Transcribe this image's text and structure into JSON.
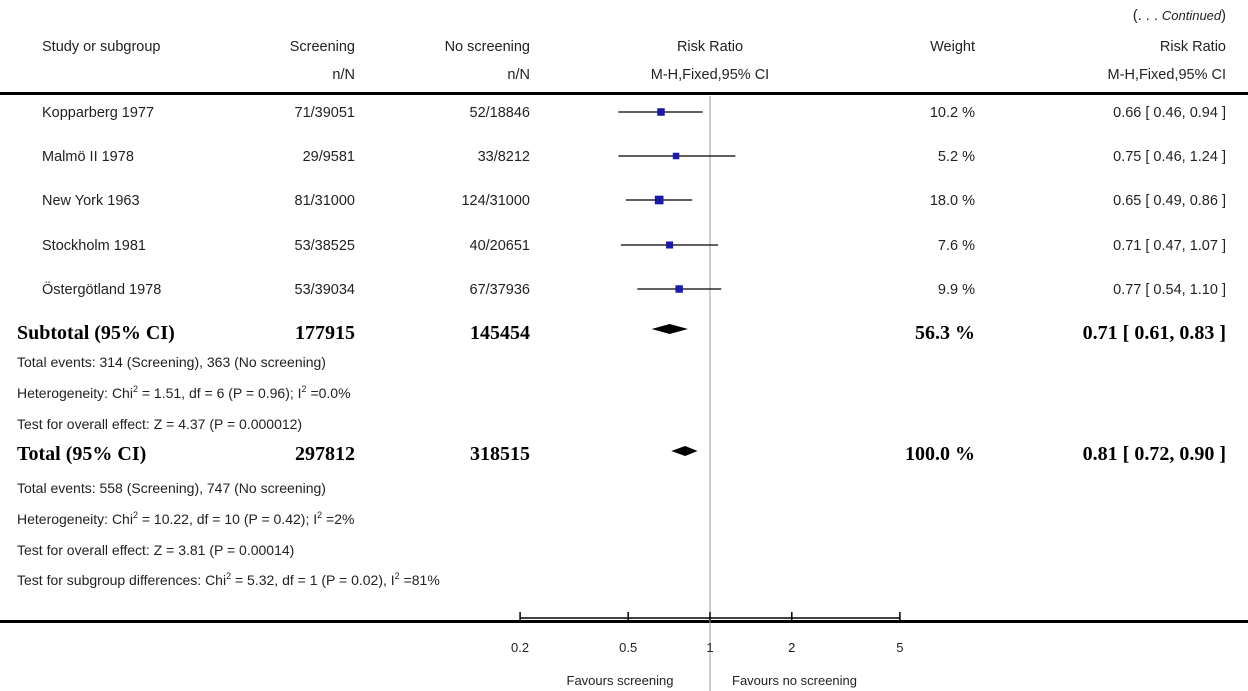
{
  "continued_label": "(. . . Continued)",
  "header": {
    "col_study": "Study or subgroup",
    "col_exp": "Screening",
    "col_ctrl": "No screening",
    "col_rr": "Risk Ratio",
    "col_weight": "Weight",
    "col_rr2": "Risk Ratio",
    "sub_exp": "n/N",
    "sub_ctrl": "n/N",
    "sub_rr": "M-H,Fixed,95% CI",
    "sub_rr2": "M-H,Fixed,95% CI"
  },
  "studies": [
    {
      "name": "Kopparberg 1977",
      "exp": "71/39051",
      "ctrl": "52/18846",
      "weight": "10.2 %",
      "ci": "0.66 [ 0.46, 0.94 ]"
    },
    {
      "name": "Malmö II 1978",
      "exp": "29/9581",
      "ctrl": "33/8212",
      "weight": "5.2 %",
      "ci": "0.75 [ 0.46, 1.24 ]"
    },
    {
      "name": "New York 1963",
      "exp": "81/31000",
      "ctrl": "124/31000",
      "weight": "18.0 %",
      "ci": "0.65 [ 0.49, 0.86 ]"
    },
    {
      "name": "Stockholm 1981",
      "exp": "53/38525",
      "ctrl": "40/20651",
      "weight": "7.6 %",
      "ci": "0.71 [ 0.47, 1.07 ]"
    },
    {
      "name": "Östergötland 1978",
      "exp": "53/39034",
      "ctrl": "67/37936",
      "weight": "9.9 %",
      "ci": "0.77 [ 0.54, 1.10 ]"
    }
  ],
  "subtotal": {
    "label": "Subtotal (95% CI)",
    "exp": "177915",
    "ctrl": "145454",
    "weight": "56.3 %",
    "ci": "0.71 [ 0.61, 0.83 ]",
    "events": "Total events: 314 (Screening), 363 (No screening)",
    "het_prefix": "Heterogeneity: Chi",
    "het_mid": " = 1.51, df = 6 (P = 0.96); I",
    "het_end": " =0.0%",
    "overall": "Test for overall effect: Z = 4.37 (P = 0.000012)"
  },
  "total": {
    "label": "Total (95% CI)",
    "exp": "297812",
    "ctrl": "318515",
    "weight": "100.0 %",
    "ci": "0.81 [ 0.72, 0.90 ]",
    "events": "Total events: 558 (Screening), 747 (No screening)",
    "het_prefix": "Heterogeneity: Chi",
    "het_mid": " = 10.22, df = 10 (P = 0.42); I",
    "het_end": " =2%",
    "overall": "Test for overall effect: Z = 3.81 (P = 0.00014)",
    "subgroup_prefix": "Test for subgroup differences: Chi",
    "subgroup_mid": " = 5.32, df = 1 (P = 0.02), I",
    "subgroup_end": " =81%"
  },
  "superscript": "2",
  "axis": {
    "ticks": [
      "0.2",
      "0.5",
      "1",
      "2",
      "5"
    ],
    "favours_left": "Favours screening",
    "favours_right": "Favours no screening"
  },
  "colors": {
    "square": "#1a1aaa",
    "diamond": "#000000",
    "line": "#000000",
    "null_line": "#9a9a9a"
  },
  "chart_data": {
    "type": "scatter",
    "scale": "log",
    "xlim": [
      0.2,
      5
    ],
    "null_value": 1,
    "points": [
      {
        "label": "Kopparberg 1977",
        "rr": 0.66,
        "lo": 0.46,
        "hi": 0.94,
        "weight": 10.2
      },
      {
        "label": "Malmö II 1978",
        "rr": 0.75,
        "lo": 0.46,
        "hi": 1.24,
        "weight": 5.2
      },
      {
        "label": "New York 1963",
        "rr": 0.65,
        "lo": 0.49,
        "hi": 0.86,
        "weight": 18.0
      },
      {
        "label": "Stockholm 1981",
        "rr": 0.71,
        "lo": 0.47,
        "hi": 1.07,
        "weight": 7.6
      },
      {
        "label": "Östergötland 1978",
        "rr": 0.77,
        "lo": 0.54,
        "hi": 1.1,
        "weight": 9.9
      }
    ],
    "diamonds": [
      {
        "label": "Subtotal (95% CI)",
        "rr": 0.71,
        "lo": 0.61,
        "hi": 0.83
      },
      {
        "label": "Total (95% CI)",
        "rr": 0.81,
        "lo": 0.72,
        "hi": 0.9
      }
    ]
  }
}
